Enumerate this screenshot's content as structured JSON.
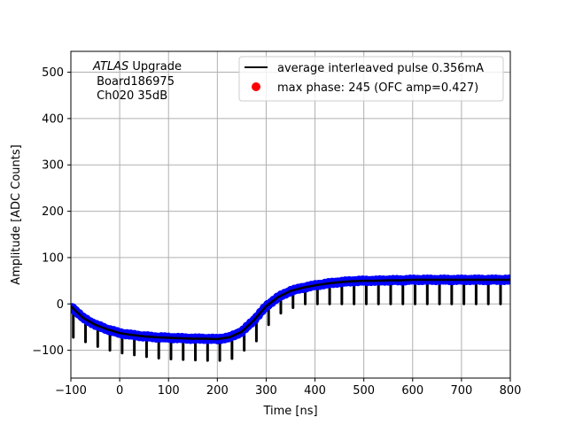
{
  "chart_data": {
    "type": "line",
    "title": "",
    "xlabel": "Time [ns]",
    "ylabel": "Amplitude [ADC Counts]",
    "xlim": [
      -100,
      800
    ],
    "ylim": [
      -160,
      545
    ],
    "xticks": [
      -100,
      0,
      100,
      200,
      300,
      400,
      500,
      600,
      700,
      800
    ],
    "yticks": [
      -100,
      0,
      100,
      200,
      300,
      400,
      500
    ],
    "grid": true,
    "legend_position": "upper-right",
    "annotation": {
      "line1_italic": "ATLAS",
      "line1_rest": " Upgrade",
      "line2": " Board186975",
      "line3": " Ch020 35dB"
    },
    "series": [
      {
        "name": "average interleaved pulse 0.356mA",
        "kind": "line",
        "color": "#000000",
        "x": [
          -100,
          -75,
          -50,
          -25,
          0,
          25,
          50,
          75,
          100,
          125,
          150,
          175,
          200,
          225,
          250,
          275,
          300,
          325,
          350,
          375,
          400,
          425,
          450,
          475,
          500,
          525,
          550,
          575,
          600,
          625,
          650,
          675,
          700,
          725,
          750,
          775,
          800
        ],
        "y": [
          -5,
          -30,
          -45,
          -55,
          -63,
          -67,
          -70,
          -72,
          -73,
          -74,
          -75,
          -75,
          -76,
          -72,
          -60,
          -35,
          -5,
          15,
          28,
          35,
          40,
          44,
          47,
          49,
          50,
          50,
          51,
          51,
          52,
          52,
          52,
          52,
          52,
          52,
          52,
          52,
          52
        ]
      },
      {
        "name": "max phase: 245 (OFC amp=0.427)",
        "kind": "scatter",
        "color": "#ff0000",
        "x": [],
        "y": []
      },
      {
        "name": "",
        "kind": "dense-points",
        "color": "#0000ff"
      }
    ],
    "dips": {
      "start": -95,
      "step": 25,
      "end": 775,
      "values": [
        -72,
        -82,
        -92,
        -100,
        -106,
        -110,
        -114,
        -117,
        -119,
        -120,
        -121,
        -122,
        -122,
        -118,
        -100,
        -80,
        -45,
        -20,
        -8,
        0,
        0,
        0,
        0,
        0,
        0,
        0,
        0,
        0,
        0,
        0,
        0,
        0,
        0,
        0,
        0,
        0
      ]
    }
  }
}
